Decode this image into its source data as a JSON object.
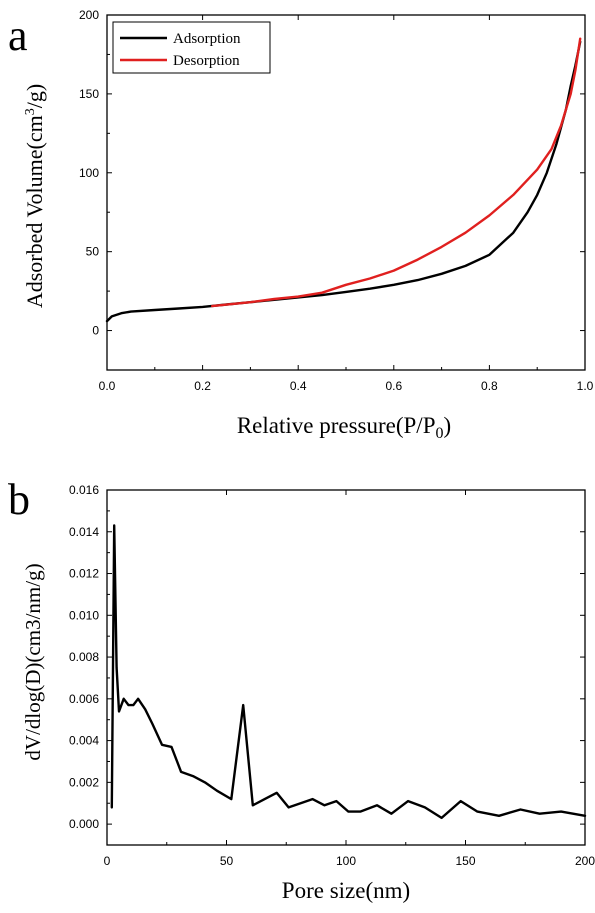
{
  "chart_data": [
    {
      "panel_label": "a",
      "type": "line",
      "xlabel": "Relative pressure(P/P0)",
      "ylabel": "Adsorbed Volume(cm3/g)",
      "xlim": [
        0,
        1.0
      ],
      "ylim": [
        -25,
        200
      ],
      "x_ticks": [
        "0.0",
        "0.2",
        "0.4",
        "0.6",
        "0.8",
        "1.0"
      ],
      "y_ticks": [
        "0",
        "50",
        "100",
        "150",
        "200"
      ],
      "legend_position": "top-left",
      "colors": {
        "Adsorption": "#000000",
        "Desorption": "#e0201f"
      },
      "series": [
        {
          "name": "Adsorption",
          "x": [
            0.0,
            0.01,
            0.03,
            0.05,
            0.1,
            0.15,
            0.2,
            0.25,
            0.3,
            0.35,
            0.4,
            0.45,
            0.5,
            0.55,
            0.6,
            0.65,
            0.7,
            0.75,
            0.8,
            0.85,
            0.88,
            0.9,
            0.92,
            0.94,
            0.96,
            0.97,
            0.98,
            0.99
          ],
          "y": [
            6,
            9,
            11,
            12,
            13,
            14,
            15,
            16.5,
            18,
            19.5,
            21,
            22.5,
            24.5,
            26.5,
            29,
            32,
            36,
            41,
            48,
            62,
            75,
            86,
            100,
            118,
            140,
            155,
            168,
            183
          ]
        },
        {
          "name": "Desorption",
          "x": [
            0.22,
            0.3,
            0.35,
            0.4,
            0.45,
            0.5,
            0.55,
            0.6,
            0.65,
            0.7,
            0.75,
            0.8,
            0.85,
            0.9,
            0.93,
            0.95,
            0.97,
            0.98,
            0.99
          ],
          "y": [
            15.5,
            18,
            20,
            21.5,
            24,
            29,
            33,
            38,
            45,
            53,
            62,
            73,
            86,
            102,
            115,
            130,
            150,
            165,
            185
          ]
        }
      ]
    },
    {
      "panel_label": "b",
      "type": "line",
      "xlabel": "Pore size(nm)",
      "ylabel": "dV/dlog(D)(cm3/nm/g)",
      "xlim": [
        0,
        200
      ],
      "ylim": [
        -0.001,
        0.016
      ],
      "x_ticks": [
        "0",
        "50",
        "100",
        "150",
        "200"
      ],
      "y_ticks": [
        "0.000",
        "0.002",
        "0.004",
        "0.006",
        "0.008",
        "0.010",
        "0.012",
        "0.014",
        "0.016"
      ],
      "series": [
        {
          "name": "",
          "x": [
            2,
            3,
            4,
            5,
            7,
            9,
            11,
            13,
            16,
            19,
            23,
            27,
            31,
            36,
            41,
            46,
            52,
            57,
            61,
            66,
            71,
            76,
            81,
            86,
            91,
            96,
            101,
            106,
            113,
            119,
            126,
            133,
            140,
            148,
            155,
            164,
            173,
            181,
            190,
            200
          ],
          "y": [
            0.0008,
            0.0143,
            0.0075,
            0.0054,
            0.006,
            0.0057,
            0.0057,
            0.006,
            0.0055,
            0.0048,
            0.0038,
            0.0037,
            0.0025,
            0.0023,
            0.002,
            0.0016,
            0.0012,
            0.0057,
            0.0009,
            0.0012,
            0.0015,
            0.0008,
            0.001,
            0.0012,
            0.0009,
            0.0011,
            0.0006,
            0.0006,
            0.0009,
            0.0005,
            0.0011,
            0.0008,
            0.0003,
            0.0011,
            0.0006,
            0.0004,
            0.0007,
            0.0005,
            0.0006,
            0.0004
          ]
        }
      ]
    }
  ]
}
